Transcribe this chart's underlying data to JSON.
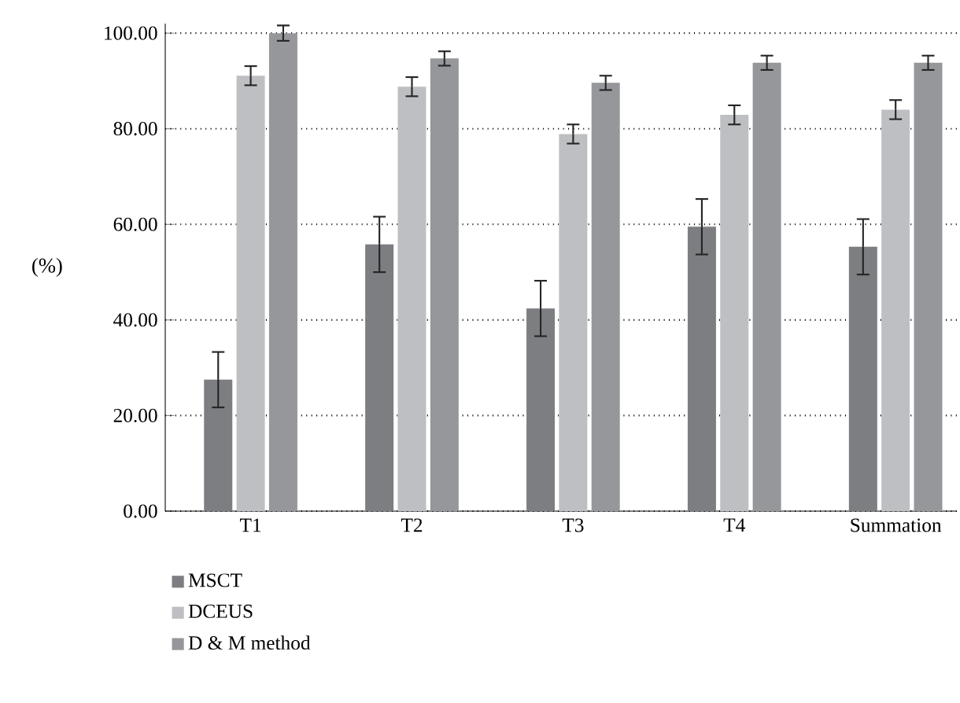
{
  "chart_data": {
    "type": "bar",
    "ylabel": "(%)",
    "categories": [
      "T1",
      "T2",
      "T3",
      "T4",
      "Summation"
    ],
    "series": [
      {
        "name": "MSCT",
        "color": "#7d7e82",
        "values": [
          27.5,
          55.8,
          42.4,
          59.5,
          55.3
        ],
        "errors": [
          5.8,
          5.8,
          5.8,
          5.8,
          5.8
        ]
      },
      {
        "name": "DCEUS",
        "color": "#bebfc3",
        "values": [
          91.1,
          88.8,
          78.9,
          82.9,
          84.0
        ],
        "errors": [
          2.0,
          2.0,
          2.0,
          2.0,
          2.0
        ]
      },
      {
        "name": "D & M method",
        "color": "#96979b",
        "values": [
          100.0,
          94.7,
          89.6,
          93.8,
          93.8
        ],
        "errors": [
          1.6,
          1.5,
          1.5,
          1.5,
          1.5
        ]
      }
    ],
    "ylim": [
      0,
      102
    ],
    "yticks": [
      {
        "value": 0,
        "label": "0.00"
      },
      {
        "value": 20,
        "label": "20.00"
      },
      {
        "value": 40,
        "label": "40.00"
      },
      {
        "value": 60,
        "label": "60.00"
      },
      {
        "value": 80,
        "label": "80.00"
      },
      {
        "value": 100,
        "label": "100.00"
      }
    ],
    "grid": "y",
    "legend": "bottom"
  }
}
